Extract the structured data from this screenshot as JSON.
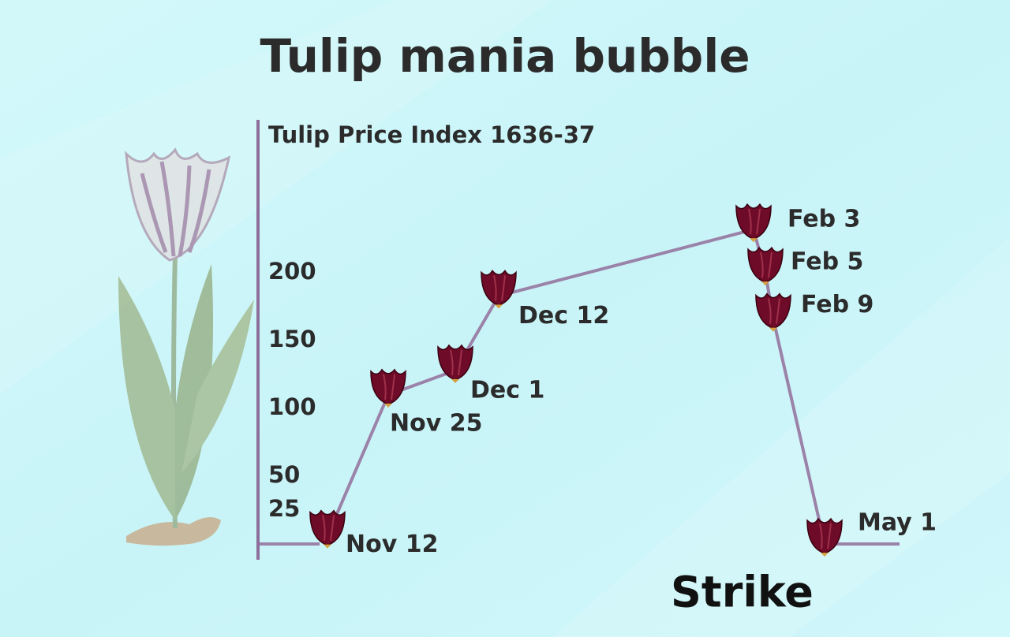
{
  "chart_data": {
    "type": "line",
    "title": "Tulip mania bubble",
    "y_label": "Tulip Price Index 1636-37",
    "categories": [
      "Nov 12",
      "Nov 25",
      "Dec 1",
      "Dec 12",
      "Feb 3",
      "Feb 5",
      "Feb 9",
      "May 1"
    ],
    "values": [
      6,
      110,
      128,
      183,
      232,
      200,
      166,
      0
    ],
    "color": "#9b82a8",
    "marker_color": "#6e0b28",
    "ylim": [
      0,
      310
    ],
    "yticks": [
      25,
      50,
      100,
      150,
      200
    ],
    "grid": false,
    "logo": "Strike"
  }
}
